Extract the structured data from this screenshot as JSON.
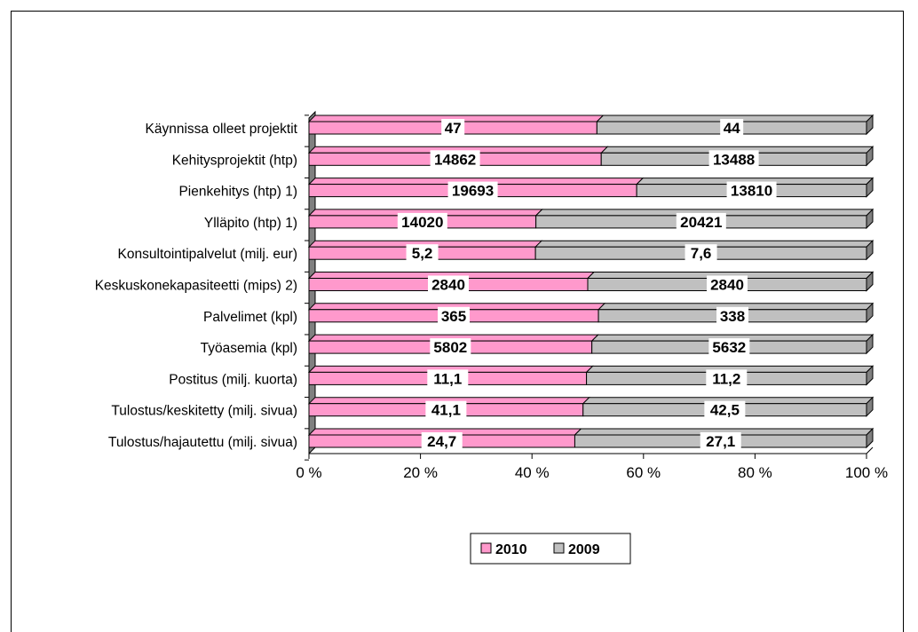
{
  "chart_data": {
    "type": "bar",
    "orientation": "horizontal",
    "stacking": "percent",
    "title": "",
    "xlabel": "",
    "ylabel": "",
    "categories": [
      "Käynnissa olleet projektit",
      "Kehitysprojektit (htp)",
      "Pienkehitys (htp)  1)",
      "Ylläpito (htp)  1)",
      "Konsultointipalvelut (milj. eur)",
      "Keskuskonekapasiteetti (mips)  2)",
      "Palvelimet (kpl)",
      "Työasemia (kpl)",
      "Postitus (milj. kuorta)",
      "Tulostus/keskitetty (milj. sivua)",
      "Tulostus/hajautettu (milj. sivua)"
    ],
    "series": [
      {
        "name": "2010",
        "color": "#ff99cc",
        "values": [
          47,
          14862,
          19693,
          14020,
          5.2,
          2840,
          365,
          5802,
          11.1,
          41.1,
          24.7
        ],
        "labels": [
          "47",
          "14862",
          "19693",
          "14020",
          "5,2",
          "2840",
          "365",
          "5802",
          "11,1",
          "41,1",
          "24,7"
        ]
      },
      {
        "name": "2009",
        "color": "#c0c0c0",
        "values": [
          44,
          13488,
          13810,
          20421,
          7.6,
          2840,
          338,
          5632,
          11.2,
          42.5,
          27.1
        ],
        "labels": [
          "44",
          "13488",
          "13810",
          "20421",
          "7,6",
          "2840",
          "338",
          "5632",
          "11,2",
          "42,5",
          "27,1"
        ]
      }
    ],
    "xlim": [
      0,
      100
    ],
    "xticks": [
      "0 %",
      "20 %",
      "40 %",
      "60 %",
      "80 %",
      "100 %"
    ],
    "grid": false,
    "legend_position": "bottom",
    "style": "3d"
  }
}
